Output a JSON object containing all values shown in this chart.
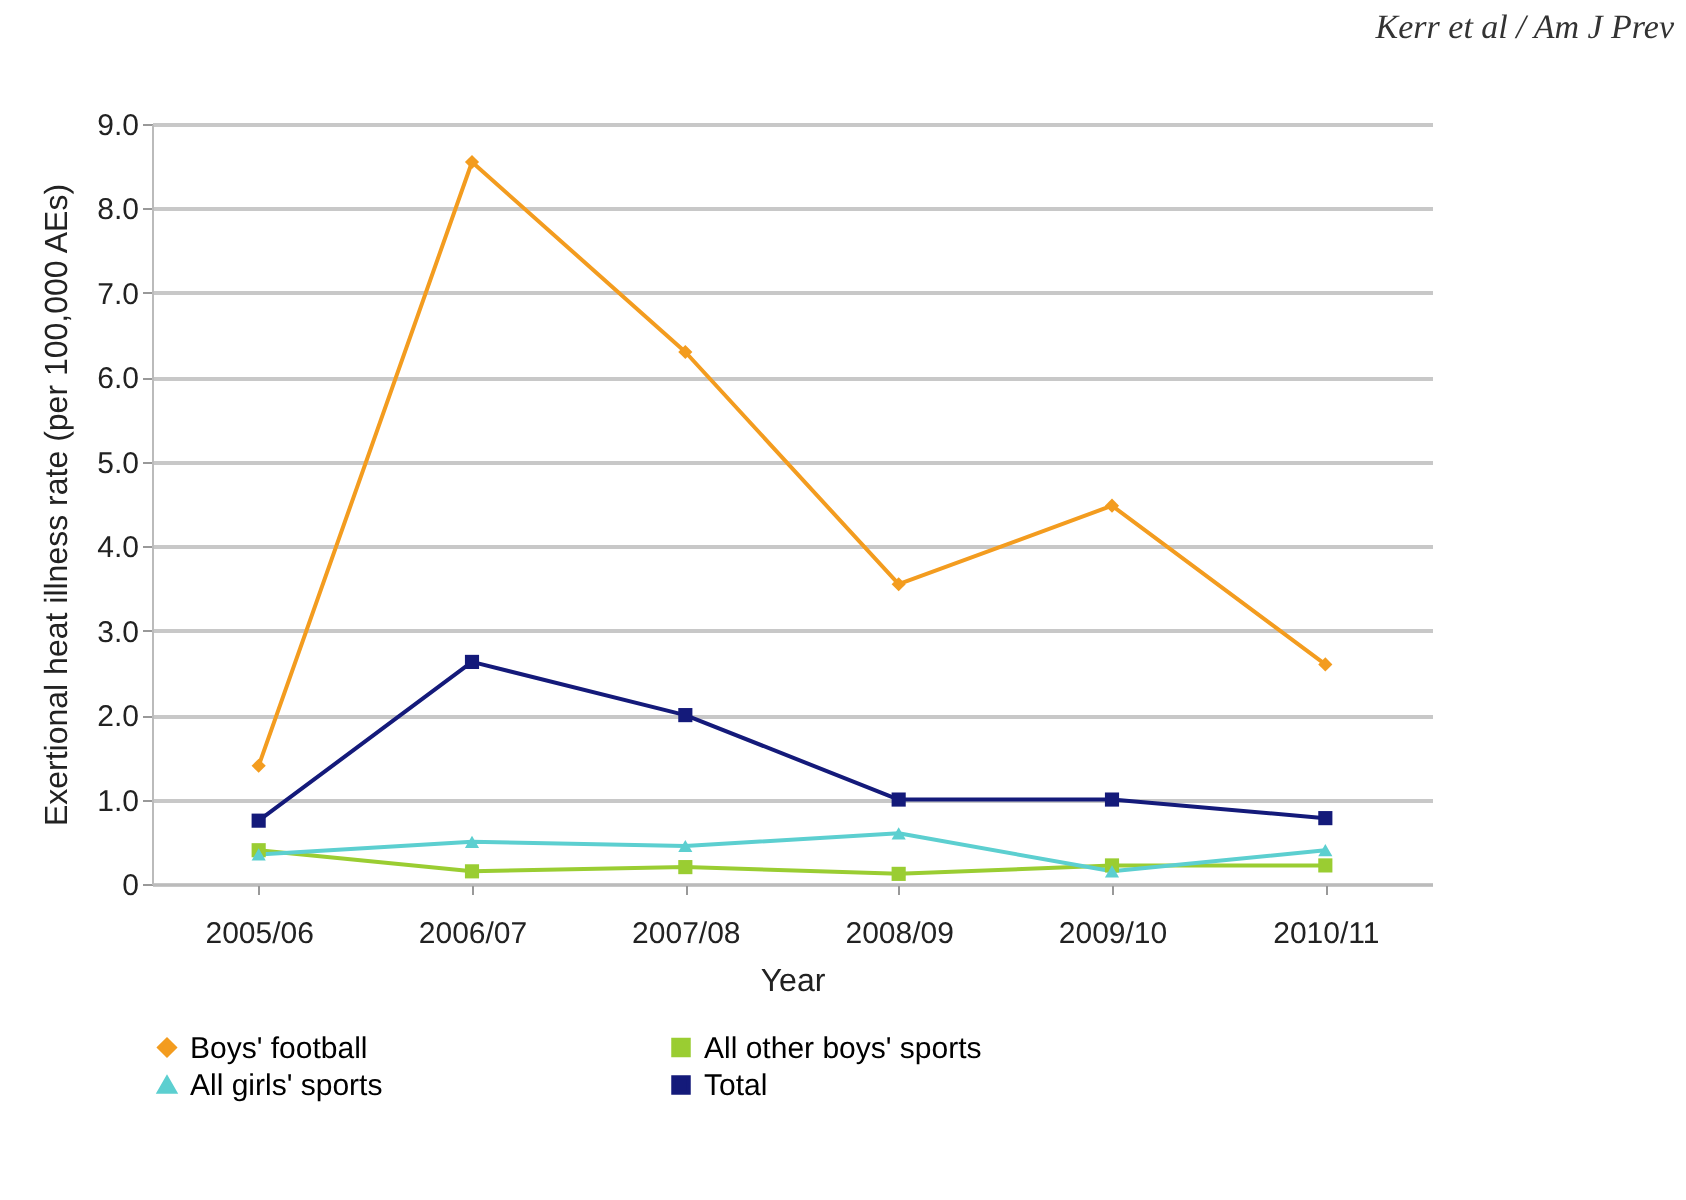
{
  "chart_data": {
    "type": "line",
    "xlabel": "Year",
    "ylabel": "Exertional heat illness rate (per 100,000 AEs)",
    "annotations": [
      "Kerr et al / Am J Prev"
    ],
    "categories": [
      "2005/06",
      "2006/07",
      "2007/08",
      "2008/09",
      "2009/10",
      "2010/11"
    ],
    "series": [
      {
        "name": "Boys' football",
        "color": "#f39c1f",
        "marker": "diamond",
        "values": [
          1.4,
          8.55,
          6.3,
          3.55,
          4.48,
          2.6
        ]
      },
      {
        "name": "All other boys' sports",
        "color": "#9acd32",
        "marker": "square",
        "values": [
          0.4,
          0.15,
          0.2,
          0.12,
          0.22,
          0.22
        ]
      },
      {
        "name": "All girls' sports",
        "color": "#5ccfd0",
        "marker": "triangle",
        "values": [
          0.35,
          0.5,
          0.45,
          0.6,
          0.15,
          0.4
        ]
      },
      {
        "name": "Total",
        "color": "#141a7a",
        "marker": "square",
        "values": [
          0.75,
          2.63,
          2.0,
          1.0,
          1.0,
          0.78
        ]
      }
    ],
    "ylim": [
      0,
      9
    ],
    "yticks": [
      {
        "value": 0,
        "label": "0"
      },
      {
        "value": 1,
        "label": "1.0"
      },
      {
        "value": 2,
        "label": "2.0"
      },
      {
        "value": 3,
        "label": "3.0"
      },
      {
        "value": 4,
        "label": "4.0"
      },
      {
        "value": 5,
        "label": "5.0"
      },
      {
        "value": 6,
        "label": "6.0"
      },
      {
        "value": 7,
        "label": "7.0"
      },
      {
        "value": 8,
        "label": "8.0"
      },
      {
        "value": 9,
        "label": "9.0"
      }
    ],
    "grid": "y",
    "legend": "bottom"
  }
}
